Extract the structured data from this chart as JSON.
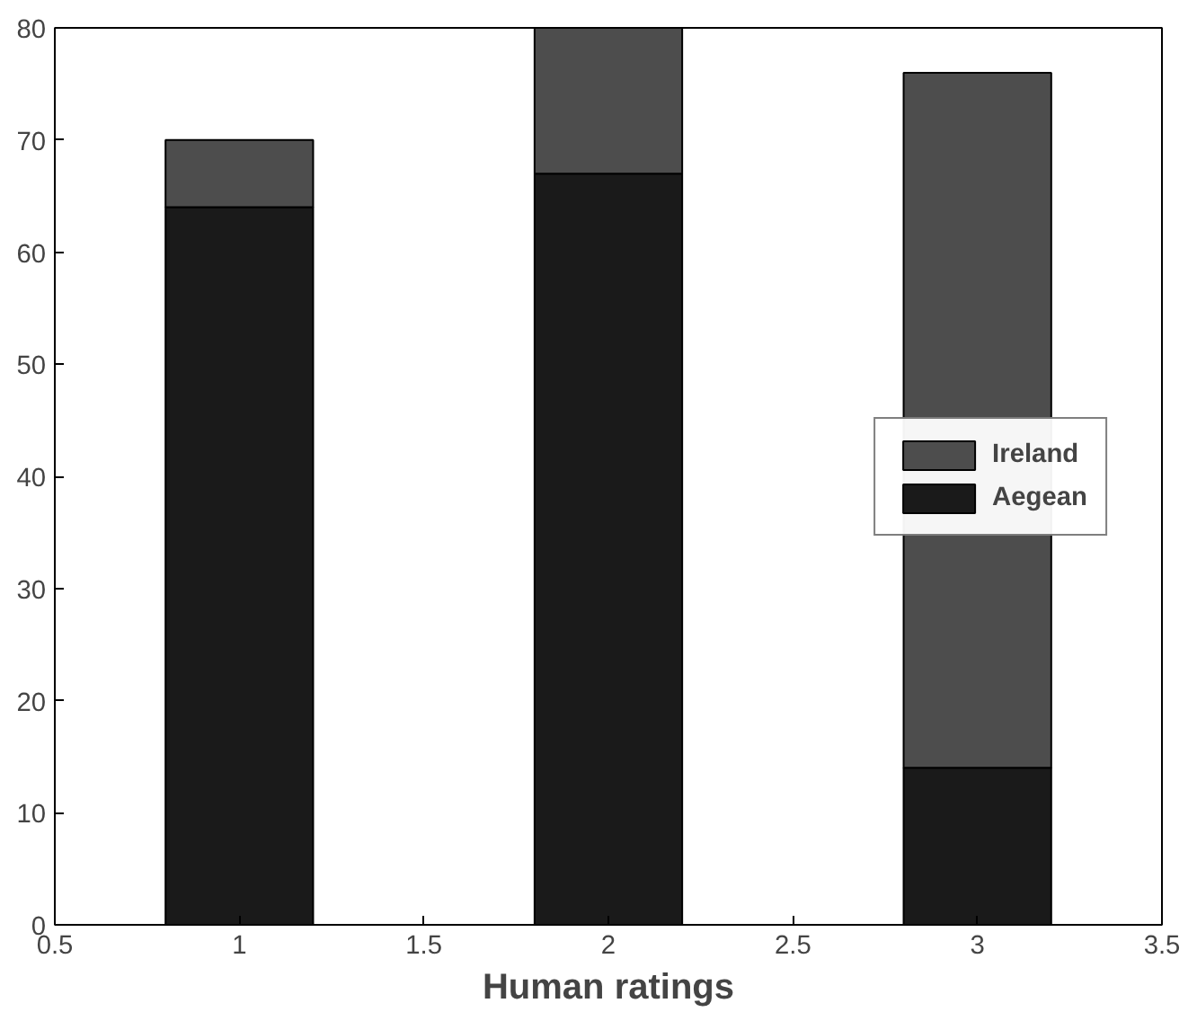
{
  "chart_data": {
    "type": "bar",
    "stacked": true,
    "xlabel": "Human ratings",
    "x": [
      1,
      2,
      3
    ],
    "series": [
      {
        "name": "Aegean",
        "color": "#1a1a1a",
        "values": [
          64,
          67,
          14
        ]
      },
      {
        "name": "Ireland",
        "color": "#4d4d4d",
        "values": [
          6,
          13,
          62
        ]
      }
    ],
    "xlim": [
      0.5,
      3.5
    ],
    "xticks": [
      0.5,
      1,
      1.5,
      2,
      2.5,
      3,
      3.5
    ],
    "ylim": [
      0,
      80
    ],
    "yticks": [
      0,
      10,
      20,
      30,
      40,
      50,
      60,
      70,
      80
    ],
    "grid": false,
    "legend": "right"
  }
}
